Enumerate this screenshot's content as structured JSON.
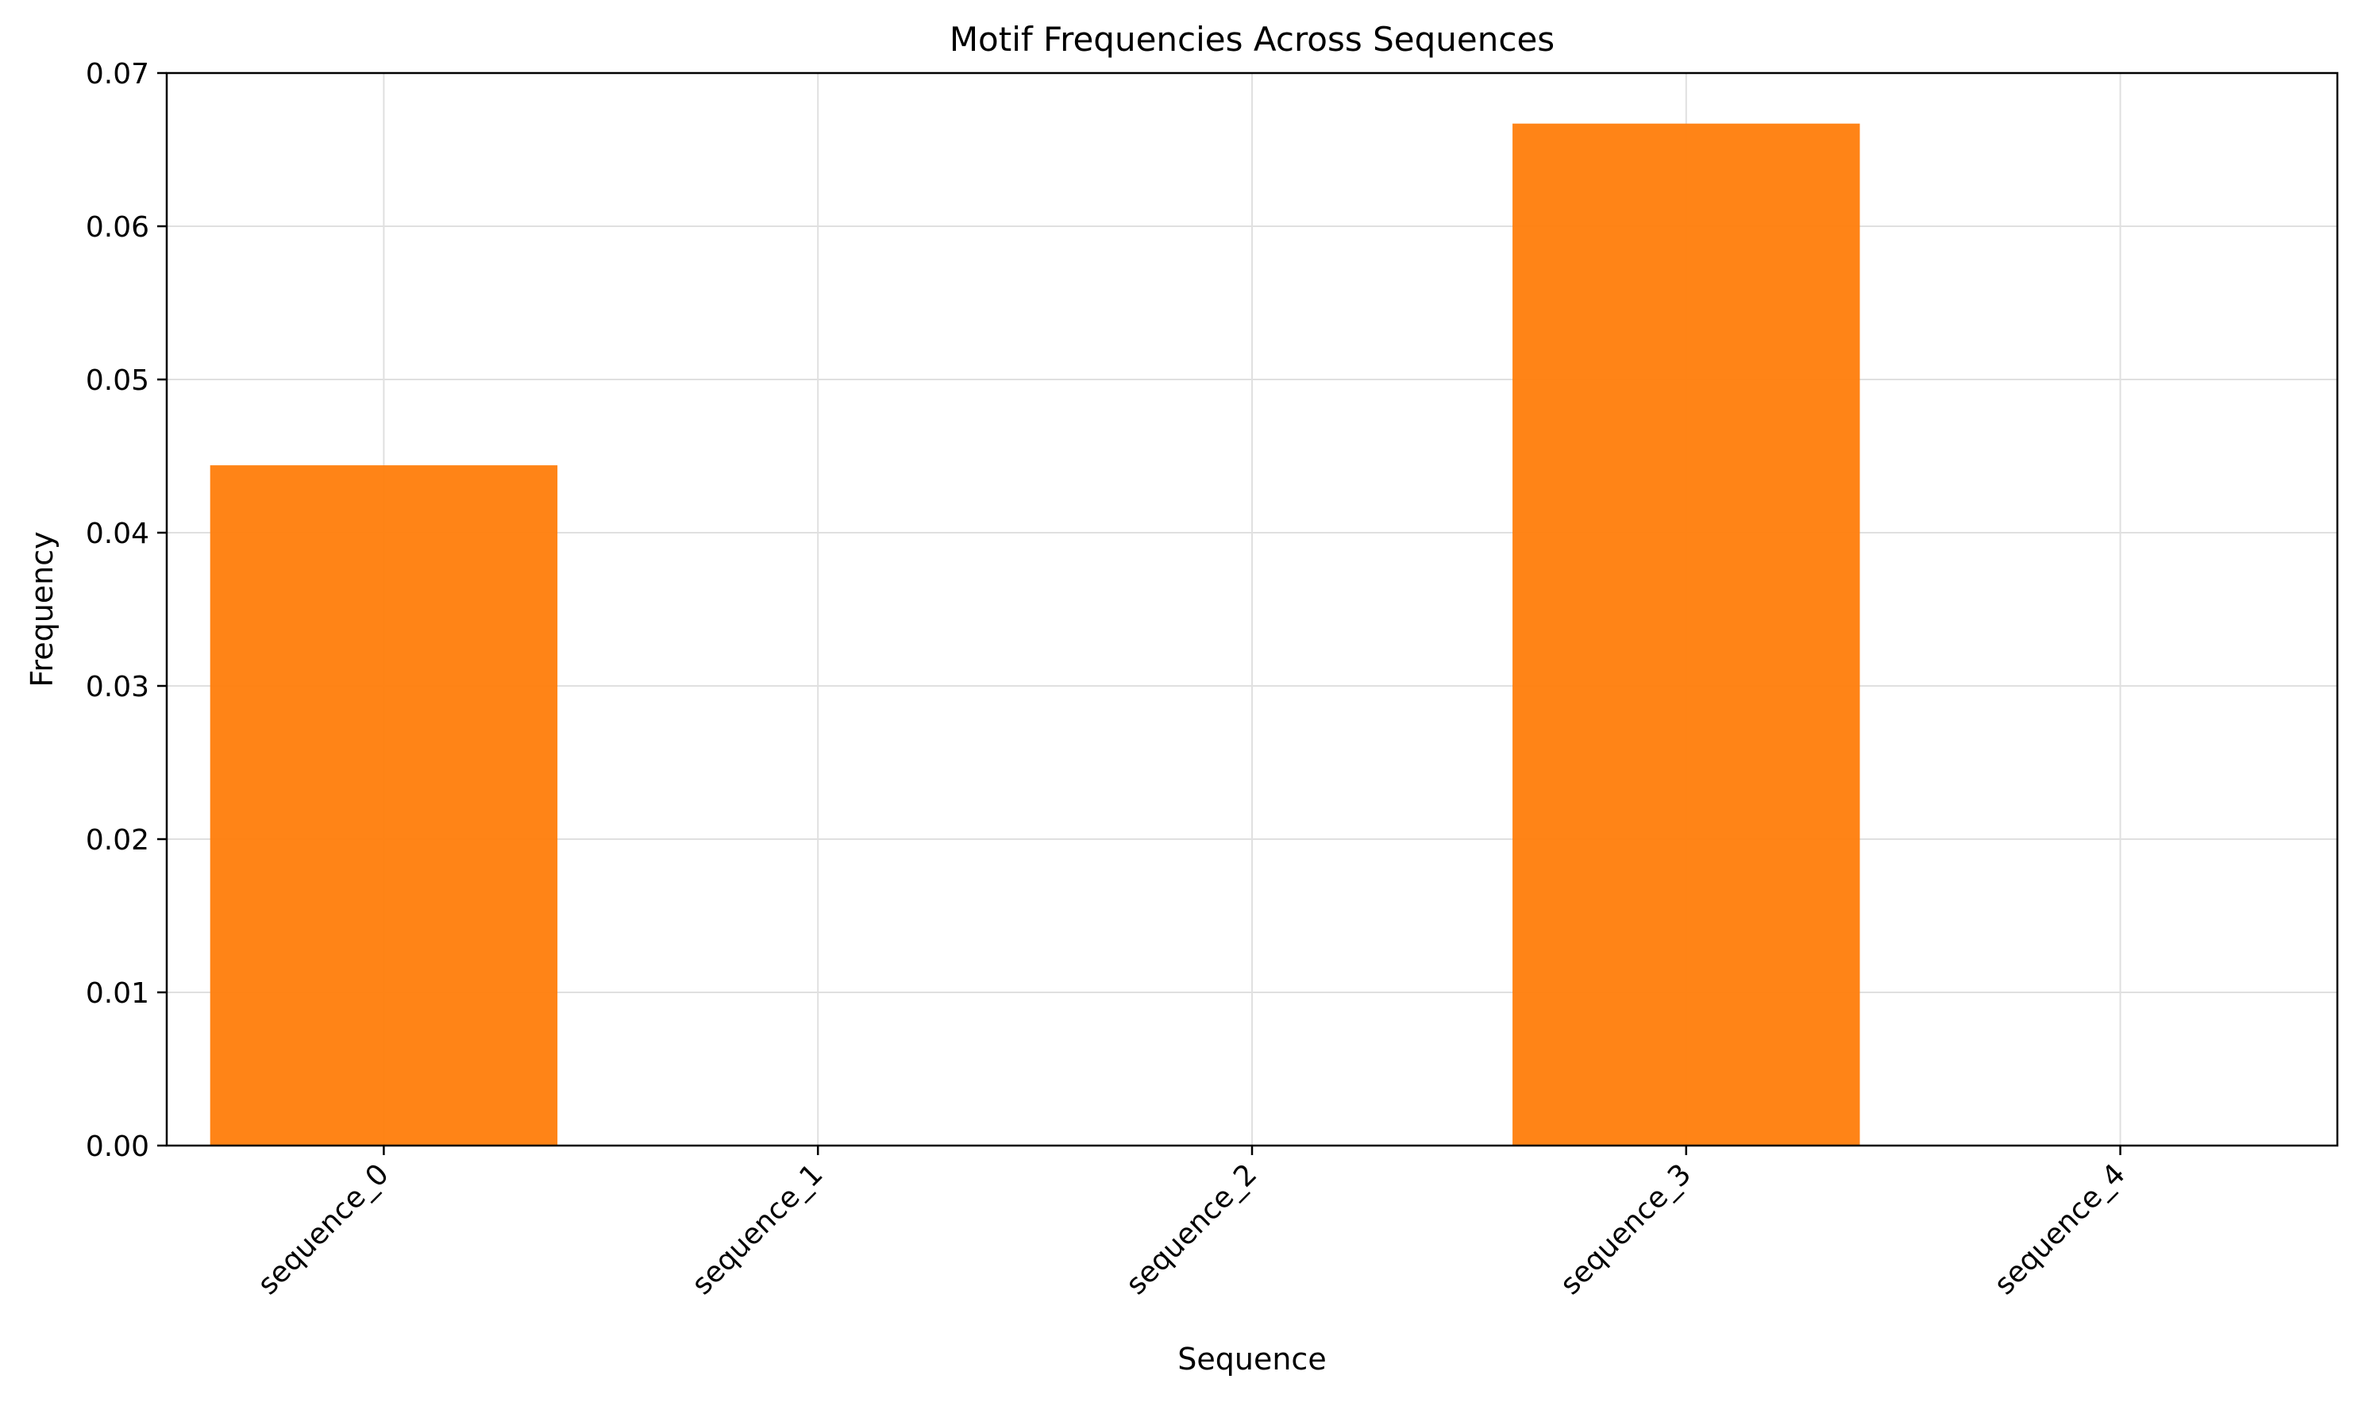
{
  "chart_data": {
    "type": "bar",
    "title": "Motif Frequencies Across Sequences",
    "xlabel": "Sequence",
    "ylabel": "Frequency",
    "categories": [
      "sequence_0",
      "sequence_1",
      "sequence_2",
      "sequence_3",
      "sequence_4"
    ],
    "values": [
      0.0444,
      0.0,
      0.0,
      0.0667,
      0.0
    ],
    "ylim": [
      0,
      0.07
    ],
    "yticks": [
      "0.00",
      "0.01",
      "0.02",
      "0.03",
      "0.04",
      "0.05",
      "0.06",
      "0.07"
    ],
    "grid": true,
    "legend": "none",
    "bar_color": "#ff7f0e"
  }
}
